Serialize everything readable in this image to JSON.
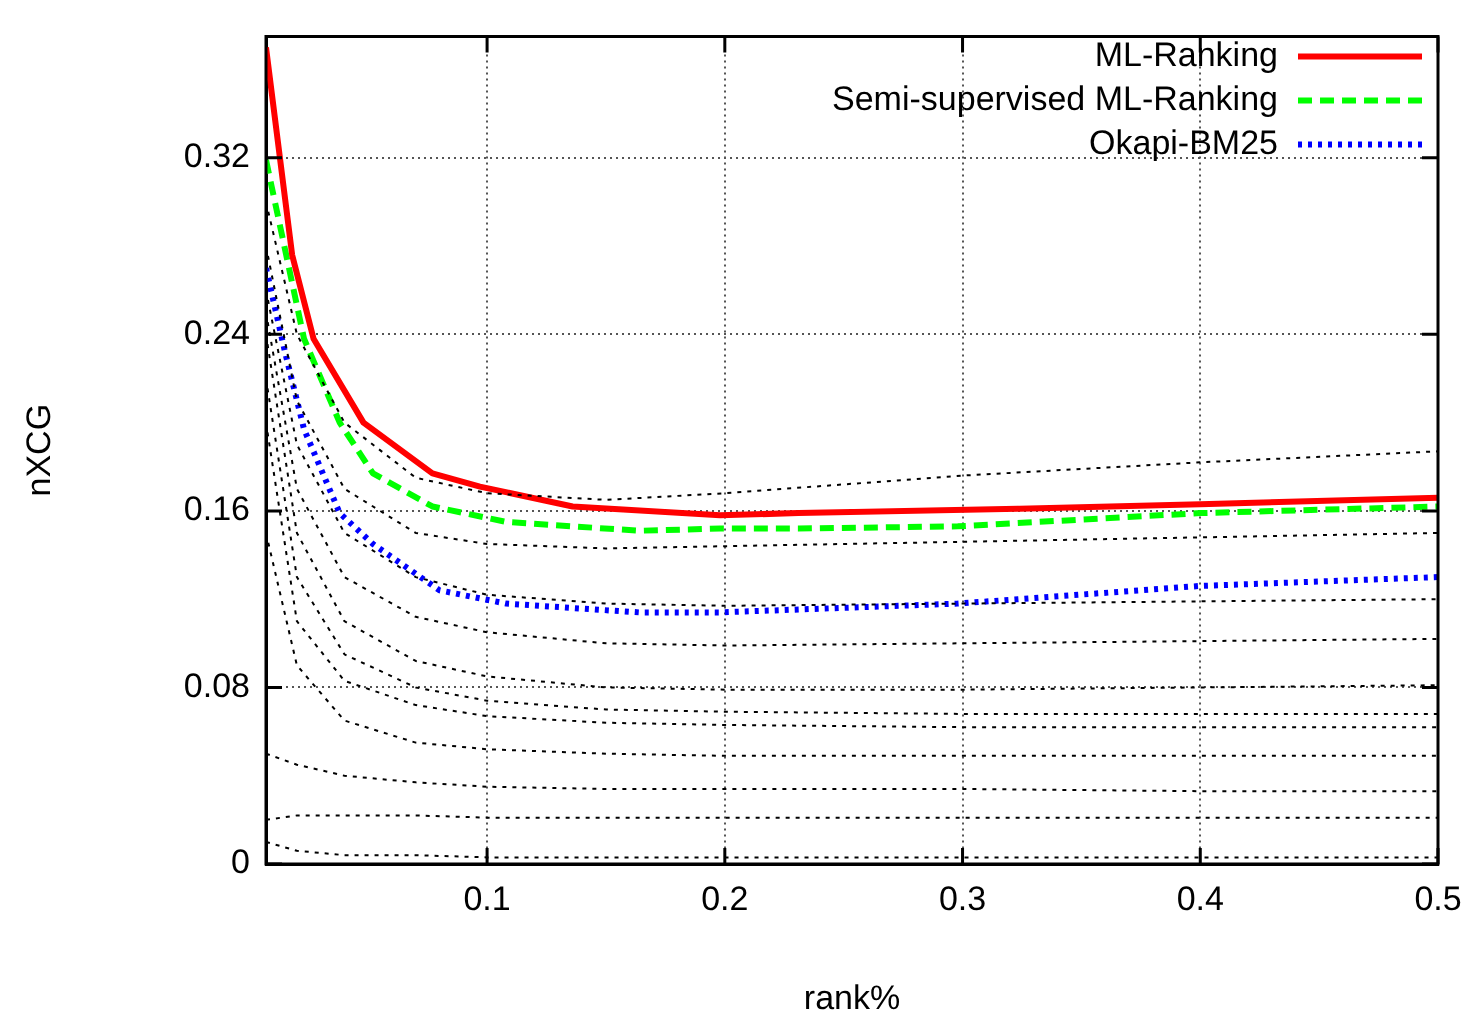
{
  "chart_data": {
    "type": "line",
    "xlabel": "rank%",
    "ylabel": "nXCG",
    "xlim": [
      0.007,
      0.5
    ],
    "ylim": [
      0,
      0.375
    ],
    "xticks": [
      0.1,
      0.2,
      0.3,
      0.4,
      0.5
    ],
    "yticks": [
      0,
      0.08,
      0.16,
      0.24,
      0.32
    ],
    "grid": true,
    "legend": "top right",
    "marker": "none",
    "series": [
      {
        "color": "#000000",
        "line_style": "dotted",
        "x": [
          0.007,
          0.02,
          0.04,
          0.07,
          0.1,
          0.15,
          0.2,
          0.3,
          0.4,
          0.5
        ],
        "values": [
          0.3,
          0.24,
          0.2,
          0.175,
          0.168,
          0.165,
          0.168,
          0.176,
          0.182,
          0.187
        ]
      },
      {
        "color": "#000000",
        "line_style": "dotted",
        "x": [
          0.007,
          0.02,
          0.04,
          0.07,
          0.1,
          0.15,
          0.2,
          0.3,
          0.4,
          0.5
        ],
        "values": [
          0.28,
          0.21,
          0.17,
          0.15,
          0.145,
          0.143,
          0.144,
          0.146,
          0.148,
          0.15
        ]
      },
      {
        "color": "#000000",
        "line_style": "dotted",
        "x": [
          0.007,
          0.02,
          0.04,
          0.07,
          0.1,
          0.15,
          0.2,
          0.3,
          0.4,
          0.5
        ],
        "values": [
          0.26,
          0.19,
          0.15,
          0.13,
          0.122,
          0.118,
          0.117,
          0.118,
          0.119,
          0.12
        ]
      },
      {
        "color": "#000000",
        "line_style": "dotted",
        "x": [
          0.007,
          0.02,
          0.04,
          0.07,
          0.1,
          0.15,
          0.2,
          0.3,
          0.4,
          0.5
        ],
        "values": [
          0.25,
          0.17,
          0.13,
          0.112,
          0.105,
          0.1,
          0.099,
          0.1,
          0.101,
          0.102
        ]
      },
      {
        "color": "#000000",
        "line_style": "dotted",
        "x": [
          0.007,
          0.02,
          0.04,
          0.07,
          0.1,
          0.15,
          0.2,
          0.3,
          0.4,
          0.5
        ],
        "values": [
          0.24,
          0.15,
          0.11,
          0.092,
          0.085,
          0.08,
          0.079,
          0.079,
          0.08,
          0.081
        ]
      },
      {
        "color": "#000000",
        "line_style": "dotted",
        "x": [
          0.007,
          0.02,
          0.04,
          0.07,
          0.1,
          0.15,
          0.2,
          0.3,
          0.4,
          0.5
        ],
        "values": [
          0.22,
          0.13,
          0.095,
          0.08,
          0.074,
          0.07,
          0.069,
          0.068,
          0.068,
          0.068
        ]
      },
      {
        "color": "#000000",
        "line_style": "dotted",
        "x": [
          0.007,
          0.02,
          0.04,
          0.07,
          0.1,
          0.15,
          0.2,
          0.3,
          0.4,
          0.5
        ],
        "values": [
          0.2,
          0.11,
          0.083,
          0.072,
          0.067,
          0.064,
          0.063,
          0.062,
          0.062,
          0.062
        ]
      },
      {
        "color": "#000000",
        "line_style": "dotted",
        "x": [
          0.007,
          0.02,
          0.04,
          0.07,
          0.1,
          0.15,
          0.2,
          0.3,
          0.4,
          0.5
        ],
        "values": [
          0.15,
          0.09,
          0.065,
          0.055,
          0.052,
          0.05,
          0.049,
          0.049,
          0.049,
          0.049
        ]
      },
      {
        "color": "#000000",
        "line_style": "dotted",
        "x": [
          0.007,
          0.02,
          0.04,
          0.07,
          0.1,
          0.15,
          0.2,
          0.3,
          0.4,
          0.5
        ],
        "values": [
          0.05,
          0.045,
          0.04,
          0.037,
          0.035,
          0.034,
          0.034,
          0.034,
          0.033,
          0.033
        ]
      },
      {
        "color": "#000000",
        "line_style": "dotted",
        "x": [
          0.007,
          0.02,
          0.04,
          0.07,
          0.1,
          0.15,
          0.2,
          0.3,
          0.4,
          0.5
        ],
        "values": [
          0.02,
          0.022,
          0.022,
          0.022,
          0.021,
          0.021,
          0.021,
          0.021,
          0.021,
          0.021
        ]
      },
      {
        "color": "#000000",
        "line_style": "dotted",
        "x": [
          0.007,
          0.02,
          0.04,
          0.07,
          0.1,
          0.15,
          0.2,
          0.3,
          0.4,
          0.5
        ],
        "values": [
          0.01,
          0.006,
          0.004,
          0.004,
          0.003,
          0.003,
          0.003,
          0.003,
          0.003,
          0.003
        ]
      },
      {
        "name": "ML-Ranking",
        "color": "#ff0000",
        "line_style": "solid",
        "x": [
          0.007,
          0.018,
          0.027,
          0.048,
          0.077,
          0.097,
          0.136,
          0.198,
          0.231,
          0.324,
          0.4,
          0.5
        ],
        "values": [
          0.37,
          0.276,
          0.238,
          0.2,
          0.177,
          0.171,
          0.162,
          0.158,
          0.159,
          0.161,
          0.163,
          0.166
        ]
      },
      {
        "name": "Semi-supervised ML-Ranking",
        "color": "#00ff00",
        "line_style": "dashed",
        "x": [
          0.007,
          0.023,
          0.038,
          0.052,
          0.077,
          0.108,
          0.164,
          0.198,
          0.231,
          0.298,
          0.4,
          0.5
        ],
        "values": [
          0.319,
          0.238,
          0.2,
          0.177,
          0.162,
          0.155,
          0.151,
          0.152,
          0.152,
          0.153,
          0.159,
          0.162
        ]
      },
      {
        "name": "Okapi-BM25",
        "color": "#0000ff",
        "line_style": "dotted",
        "x": [
          0.007,
          0.015,
          0.023,
          0.038,
          0.052,
          0.08,
          0.108,
          0.164,
          0.198,
          0.298,
          0.4,
          0.5
        ],
        "values": [
          0.27,
          0.232,
          0.197,
          0.159,
          0.145,
          0.124,
          0.118,
          0.114,
          0.114,
          0.118,
          0.126,
          0.13
        ]
      }
    ]
  }
}
